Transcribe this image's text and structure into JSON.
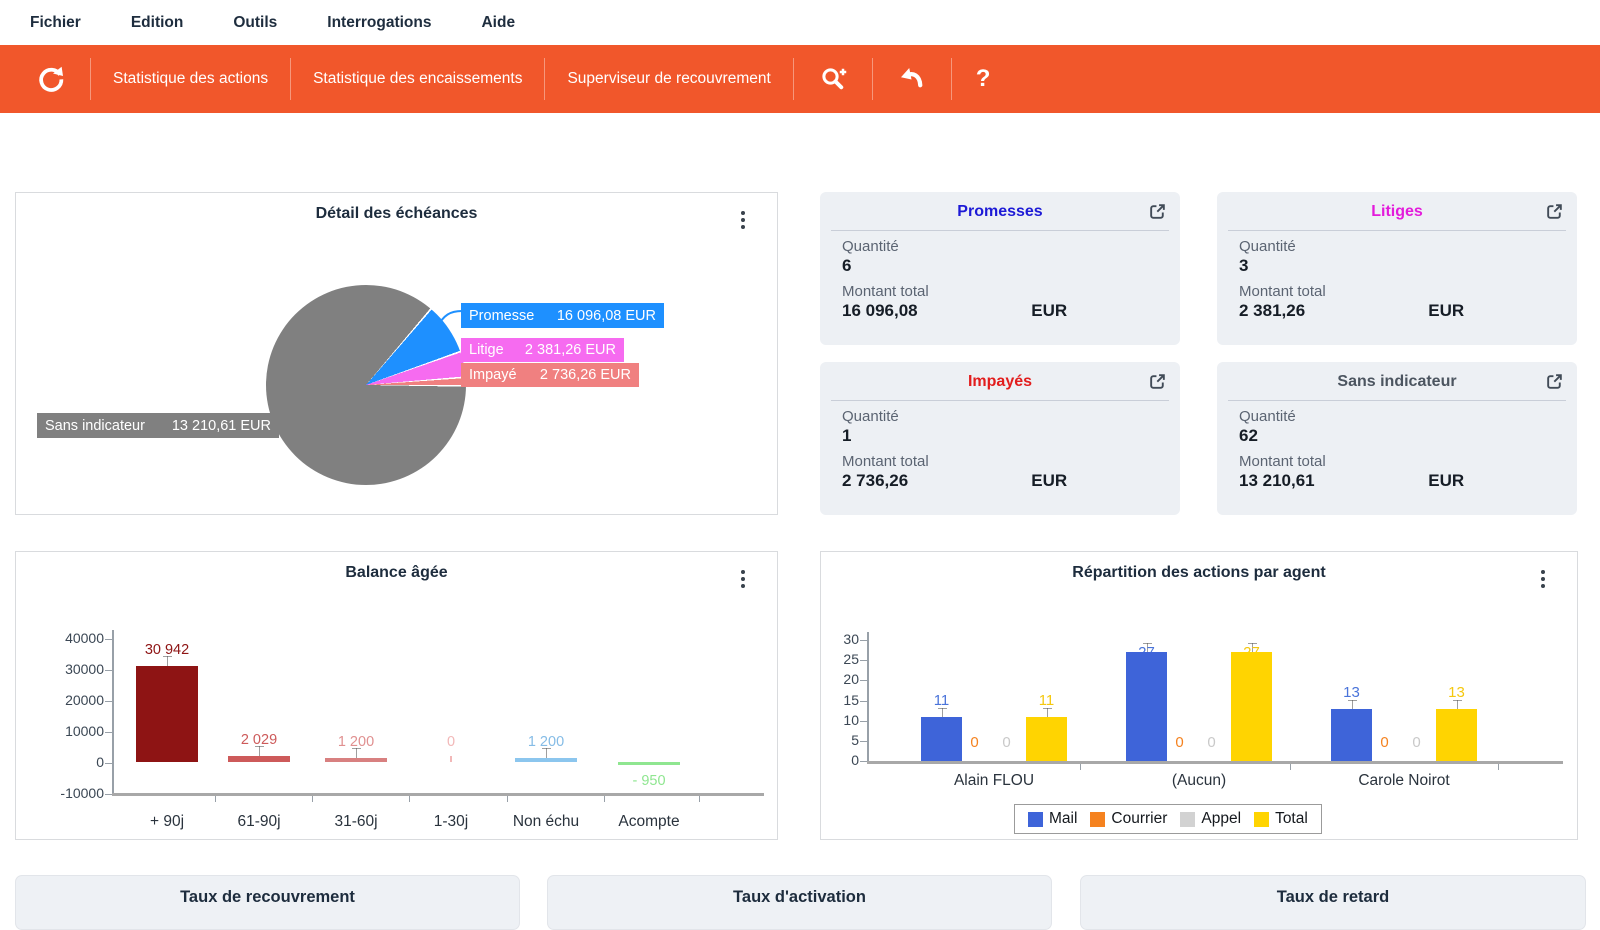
{
  "menu": {
    "items": [
      "Fichier",
      "Edition",
      "Outils",
      "Interrogations",
      "Aide"
    ]
  },
  "toolbar": {
    "background": "#f1572b",
    "items": [
      "Statistique des actions",
      "Statistique des encaissements",
      "Superviseur de recouvrement"
    ],
    "help_label": "?",
    "icons": [
      "refresh-icon",
      "search-plus-icon",
      "undo-icon",
      "help-icon"
    ]
  },
  "pie_chart": {
    "type": "pie",
    "title": "Détail des échéances",
    "unit": "EUR",
    "slices": [
      {
        "label": "Promesse",
        "amount": "16 096,08 EUR",
        "quantity": 6,
        "color": "#1e90ff"
      },
      {
        "label": "Litige",
        "amount": "2 381,26 EUR",
        "quantity": 3,
        "color": "#f66bf0"
      },
      {
        "label": "Impayé",
        "amount": "2 736,26 EUR",
        "quantity": 1,
        "color": "#f08080"
      },
      {
        "label": "Sans indicateur",
        "amount": "13 210,61 EUR",
        "quantity": 62,
        "color": "#808080"
      }
    ]
  },
  "cards": [
    {
      "title": "Promesses",
      "title_color": "#1d1ad6",
      "quantity_label": "Quantité",
      "quantity": "6",
      "amount_label": "Montant total",
      "amount": "16 096,08",
      "currency": "EUR"
    },
    {
      "title": "Litiges",
      "title_color": "#e31bdb",
      "quantity_label": "Quantité",
      "quantity": "3",
      "amount_label": "Montant total",
      "amount": "2 381,26",
      "currency": "EUR"
    },
    {
      "title": "Impayés",
      "title_color": "#e21d1d",
      "quantity_label": "Quantité",
      "quantity": "1",
      "amount_label": "Montant total",
      "amount": "2 736,26",
      "currency": "EUR"
    },
    {
      "title": "Sans indicateur",
      "title_color": "#4c5560",
      "quantity_label": "Quantité",
      "quantity": "62",
      "amount_label": "Montant total",
      "amount": "13 210,61",
      "currency": "EUR"
    }
  ],
  "balance_chart": {
    "type": "bar",
    "title": "Balance âgée",
    "categories": [
      "+ 90j",
      "61-90j",
      "31-60j",
      "1-30j",
      "Non échu",
      "Acompte"
    ],
    "values": [
      30942,
      2029,
      1200,
      0,
      1200,
      -950
    ],
    "value_labels": [
      "30 942",
      "2 029",
      "1 200",
      "0",
      "1 200",
      "- 950"
    ],
    "bar_colors": [
      "#8e1414",
      "#cd5a5a",
      "#d88080",
      "#f2b8b8",
      "#8cc6ee",
      "#8fe690"
    ],
    "label_colors": [
      "#8e1414",
      "#cd5a5a",
      "#e09090",
      "#f2b8b8",
      "#85bce6",
      "#8fe690"
    ],
    "y_ticks": [
      "40000",
      "30000",
      "20000",
      "10000",
      "0",
      "-10000"
    ],
    "ylim": [
      -10000,
      40000
    ],
    "grid": false
  },
  "agent_chart": {
    "type": "grouped-bar",
    "title": "Répartition des actions par agent",
    "categories": [
      "Alain FLOU",
      "(Aucun)",
      "Carole Noirot"
    ],
    "series": [
      {
        "name": "Mail",
        "color": "#3e64d9",
        "label_color": "#4a74da",
        "values": [
          11,
          27,
          13
        ]
      },
      {
        "name": "Courrier",
        "color": "#f5821f",
        "label_color": "#f5821f",
        "values": [
          0,
          0,
          0
        ]
      },
      {
        "name": "Appel",
        "color": "#d2d2d2",
        "label_color": "#c9c9c9",
        "values": [
          0,
          0,
          0
        ]
      },
      {
        "name": "Total",
        "color": "#ffd401",
        "label_color": "#f5c80e",
        "values": [
          11,
          27,
          13
        ]
      }
    ],
    "y_ticks": [
      "30",
      "25",
      "20",
      "15",
      "10",
      "5",
      "0"
    ],
    "ylim": [
      0,
      30
    ],
    "legend_position": "bottom"
  },
  "bottom_cards": [
    {
      "title": "Taux de recouvrement"
    },
    {
      "title": "Taux d'activation"
    },
    {
      "title": "Taux de retard"
    }
  ]
}
